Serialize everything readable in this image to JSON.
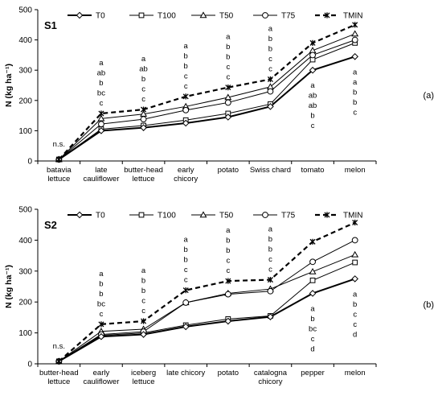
{
  "series_styles": [
    {
      "name": "T0",
      "marker": "diamond",
      "color": "#000000",
      "width": 2.0,
      "dash": ""
    },
    {
      "name": "T100",
      "marker": "square",
      "color": "#000000",
      "width": 1.0,
      "dash": ""
    },
    {
      "name": "T50",
      "marker": "triangle",
      "color": "#000000",
      "width": 1.0,
      "dash": ""
    },
    {
      "name": "T75",
      "marker": "circle",
      "color": "#000000",
      "width": 1.0,
      "dash": ""
    },
    {
      "name": "TMIN",
      "marker": "star",
      "color": "#000000",
      "width": 2.2,
      "dash": "6,4"
    }
  ],
  "chart_data": [
    {
      "type": "line",
      "title": "S1",
      "panel_label": "(a)",
      "ylabel": "N (kg ha⁻¹)",
      "ylim": [
        0,
        500
      ],
      "yticks": [
        0,
        100,
        200,
        300,
        400,
        500
      ],
      "categories": [
        "batavia\nlettuce",
        "late\ncauliflower",
        "butter-head\nlettuce",
        "early\nchicory",
        "potato",
        "Swiss chard",
        "tomato",
        "melon"
      ],
      "series": [
        {
          "name": "T0",
          "values": [
            5,
            100,
            110,
            125,
            145,
            180,
            300,
            345
          ]
        },
        {
          "name": "T100",
          "values": [
            5,
            105,
            117,
            135,
            157,
            188,
            335,
            390
          ]
        },
        {
          "name": "T50",
          "values": [
            5,
            140,
            155,
            180,
            210,
            245,
            365,
            420
          ]
        },
        {
          "name": "T75",
          "values": [
            5,
            122,
            138,
            168,
            193,
            230,
            350,
            400
          ]
        },
        {
          "name": "TMIN",
          "values": [
            5,
            157,
            170,
            213,
            243,
            270,
            390,
            450
          ]
        }
      ],
      "significance": [
        {
          "category": "batavia\nlettuce",
          "letters": [
            "n.s."
          ],
          "placement": "above"
        },
        {
          "category": "late\ncauliflower",
          "letters": [
            "a",
            "ab",
            "b",
            "bc",
            "c"
          ],
          "placement": "above"
        },
        {
          "category": "butter-head\nlettuce",
          "letters": [
            "a",
            "ab",
            "b",
            "c",
            "c"
          ],
          "placement": "above"
        },
        {
          "category": "early\nchicory",
          "letters": [
            "a",
            "b",
            "b",
            "c",
            "c"
          ],
          "placement": "above"
        },
        {
          "category": "potato",
          "letters": [
            "a",
            "b",
            "b",
            "c",
            "c"
          ],
          "placement": "above"
        },
        {
          "category": "Swiss chard",
          "letters": [
            "a",
            "b",
            "b",
            "c",
            "c"
          ],
          "placement": "above"
        },
        {
          "category": "tomato",
          "letters": [
            "a",
            "ab",
            "ab",
            "b",
            "c"
          ],
          "placement": "below"
        },
        {
          "category": "melon",
          "letters": [
            "a",
            "a",
            "b",
            "b",
            "c"
          ],
          "placement": "below"
        }
      ]
    },
    {
      "type": "line",
      "title": "S2",
      "panel_label": "(b)",
      "ylabel": "N (kg ha⁻¹)",
      "ylim": [
        0,
        500
      ],
      "yticks": [
        0,
        100,
        200,
        300,
        400,
        500
      ],
      "categories": [
        "butter-head\nlettuce",
        "early\ncauliflower",
        "iceberg\nlettuce",
        "late chicory",
        "potato",
        "catalogna\nchicory",
        "pepper",
        "melon"
      ],
      "series": [
        {
          "name": "T0",
          "values": [
            8,
            88,
            95,
            120,
            138,
            152,
            228,
            275
          ]
        },
        {
          "name": "T100",
          "values": [
            8,
            92,
            100,
            125,
            145,
            155,
            270,
            328
          ]
        },
        {
          "name": "T50",
          "values": [
            8,
            105,
            112,
            198,
            228,
            242,
            298,
            353
          ]
        },
        {
          "name": "T75",
          "values": [
            8,
            95,
            104,
            198,
            225,
            235,
            330,
            400
          ]
        },
        {
          "name": "TMIN",
          "values": [
            8,
            128,
            138,
            238,
            268,
            272,
            395,
            457
          ]
        }
      ],
      "significance": [
        {
          "category": "butter-head\nlettuce",
          "letters": [
            "n.s."
          ],
          "placement": "above"
        },
        {
          "category": "early\ncauliflower",
          "letters": [
            "a",
            "b",
            "b",
            "bc",
            "c"
          ],
          "placement": "above"
        },
        {
          "category": "iceberg\nlettuce",
          "letters": [
            "a",
            "b",
            "b",
            "c",
            "c"
          ],
          "placement": "above"
        },
        {
          "category": "late chicory",
          "letters": [
            "a",
            "b",
            "b",
            "c",
            "c"
          ],
          "placement": "above"
        },
        {
          "category": "potato",
          "letters": [
            "a",
            "b",
            "b",
            "c",
            "c"
          ],
          "placement": "above"
        },
        {
          "category": "catalogna\nchicory",
          "letters": [
            "a",
            "b",
            "b",
            "c",
            "c"
          ],
          "placement": "above"
        },
        {
          "category": "pepper",
          "letters": [
            "a",
            "b",
            "bc",
            "c",
            "d"
          ],
          "placement": "below"
        },
        {
          "category": "melon",
          "letters": [
            "a",
            "b",
            "c",
            "c",
            "d"
          ],
          "placement": "below"
        }
      ]
    }
  ]
}
